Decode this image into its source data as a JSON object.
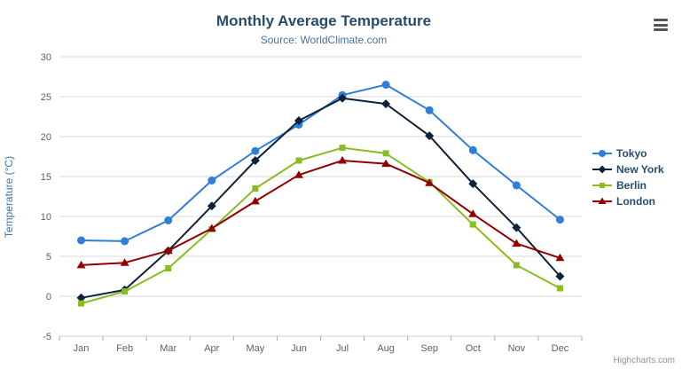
{
  "chart_data": {
    "type": "line",
    "title": "Monthly Average Temperature",
    "subtitle": "Source: WorldClimate.com",
    "ylabel": "Temperature (°C)",
    "xlabel": "",
    "categories": [
      "Jan",
      "Feb",
      "Mar",
      "Apr",
      "May",
      "Jun",
      "Jul",
      "Aug",
      "Sep",
      "Oct",
      "Nov",
      "Dec"
    ],
    "ylim": [
      -5,
      30
    ],
    "ytick_interval": 5,
    "grid": true,
    "legend_position": "right",
    "credits": "Highcharts.com",
    "styles": {
      "background": "#ffffff",
      "grid_color": "#d8d8d8",
      "axis_line_color": "#c0d0e0",
      "tick_color": "#aaaaaa",
      "axis_label_color": "#606060",
      "title_color": "#274b6d",
      "subtitle_color": "#4572a7",
      "ylabel_color": "#4572a7",
      "legend_text_color": "#274b6d",
      "credits_color": "#909090",
      "export_icon_color": "#555555"
    },
    "series": [
      {
        "name": "Tokyo",
        "color": "#2f7ed8",
        "marker": "circle",
        "values": [
          7.0,
          6.9,
          9.5,
          14.5,
          18.2,
          21.5,
          25.2,
          26.5,
          23.3,
          18.3,
          13.9,
          9.6
        ]
      },
      {
        "name": "New York",
        "color": "#0d233a",
        "marker": "diamond",
        "values": [
          -0.2,
          0.8,
          5.7,
          11.3,
          17.0,
          22.0,
          24.8,
          24.1,
          20.1,
          14.1,
          8.6,
          2.5
        ]
      },
      {
        "name": "Berlin",
        "color": "#8bbc21",
        "marker": "square",
        "values": [
          -0.9,
          0.6,
          3.5,
          8.4,
          13.5,
          17.0,
          18.6,
          17.9,
          14.3,
          9.0,
          3.9,
          1.0
        ]
      },
      {
        "name": "London",
        "color": "#910000",
        "marker": "triangle",
        "values": [
          3.9,
          4.2,
          5.7,
          8.5,
          11.9,
          15.2,
          17.0,
          16.6,
          14.2,
          10.3,
          6.6,
          4.8
        ]
      }
    ]
  },
  "export_menu": {
    "icon": "hamburger-icon"
  }
}
